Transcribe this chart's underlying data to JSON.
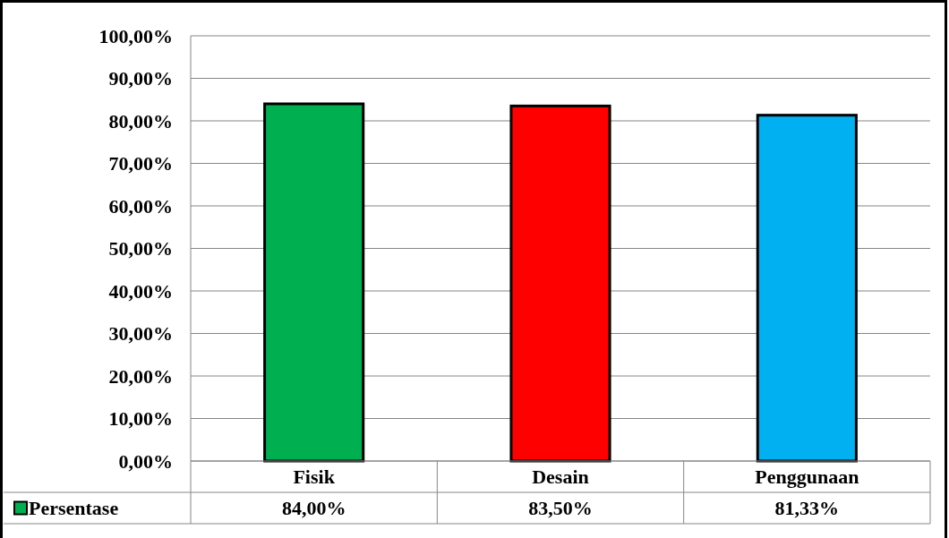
{
  "chart_data": {
    "type": "bar",
    "categories": [
      "Fisik",
      "Desain",
      "Penggunaan"
    ],
    "series": [
      {
        "name": "Persentase",
        "color": "#00b050",
        "colors": [
          "#00b050",
          "#ff0000",
          "#00b0f0"
        ],
        "values": [
          84,
          83.5,
          81.33
        ],
        "value_labels": [
          "84,00%",
          "83,50%",
          "81,33%"
        ]
      }
    ],
    "ylim": [
      0,
      100
    ],
    "yticks": [
      {
        "value": 0,
        "label": "0,00%"
      },
      {
        "value": 10,
        "label": "10,00%"
      },
      {
        "value": 20,
        "label": "20,00%"
      },
      {
        "value": 30,
        "label": "30,00%"
      },
      {
        "value": 40,
        "label": "40,00%"
      },
      {
        "value": 50,
        "label": "50,00%"
      },
      {
        "value": 60,
        "label": "60,00%"
      },
      {
        "value": 70,
        "label": "70,00%"
      },
      {
        "value": 80,
        "label": "80,00%"
      },
      {
        "value": 90,
        "label": "90,00%"
      },
      {
        "value": 100,
        "label": "100,00%"
      }
    ],
    "grid": "y",
    "legend": "bottom"
  }
}
